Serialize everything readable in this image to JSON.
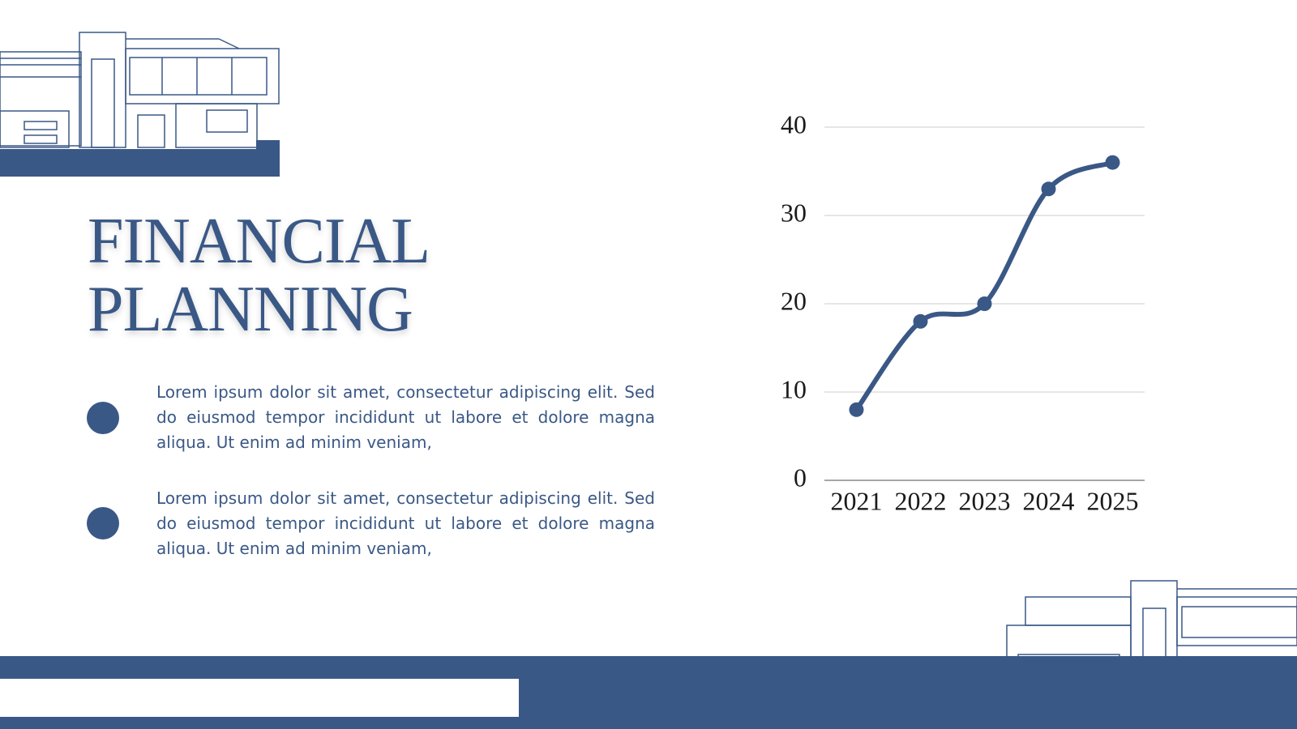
{
  "title_lines": [
    "FINANCIAL",
    "PLANNING"
  ],
  "bullets": [
    "Lorem ipsum dolor sit amet, consectetur adipiscing elit. Sed do eiusmod tempor incididunt ut labore et dolore magna aliqua. Ut enim ad minim veniam,",
    "Lorem ipsum dolor sit amet, consectetur adipiscing elit. Sed do eiusmod tempor incididunt ut labore et dolore magna aliqua. Ut enim ad minim veniam,"
  ],
  "chart_data": {
    "type": "line",
    "categories": [
      "2021",
      "2022",
      "2023",
      "2024",
      "2025"
    ],
    "values": [
      8,
      18,
      20,
      33,
      36
    ],
    "color": "#3a5886",
    "ylim": [
      0,
      40
    ],
    "yticks": [
      0,
      10,
      20,
      30,
      40
    ],
    "grid": true
  }
}
